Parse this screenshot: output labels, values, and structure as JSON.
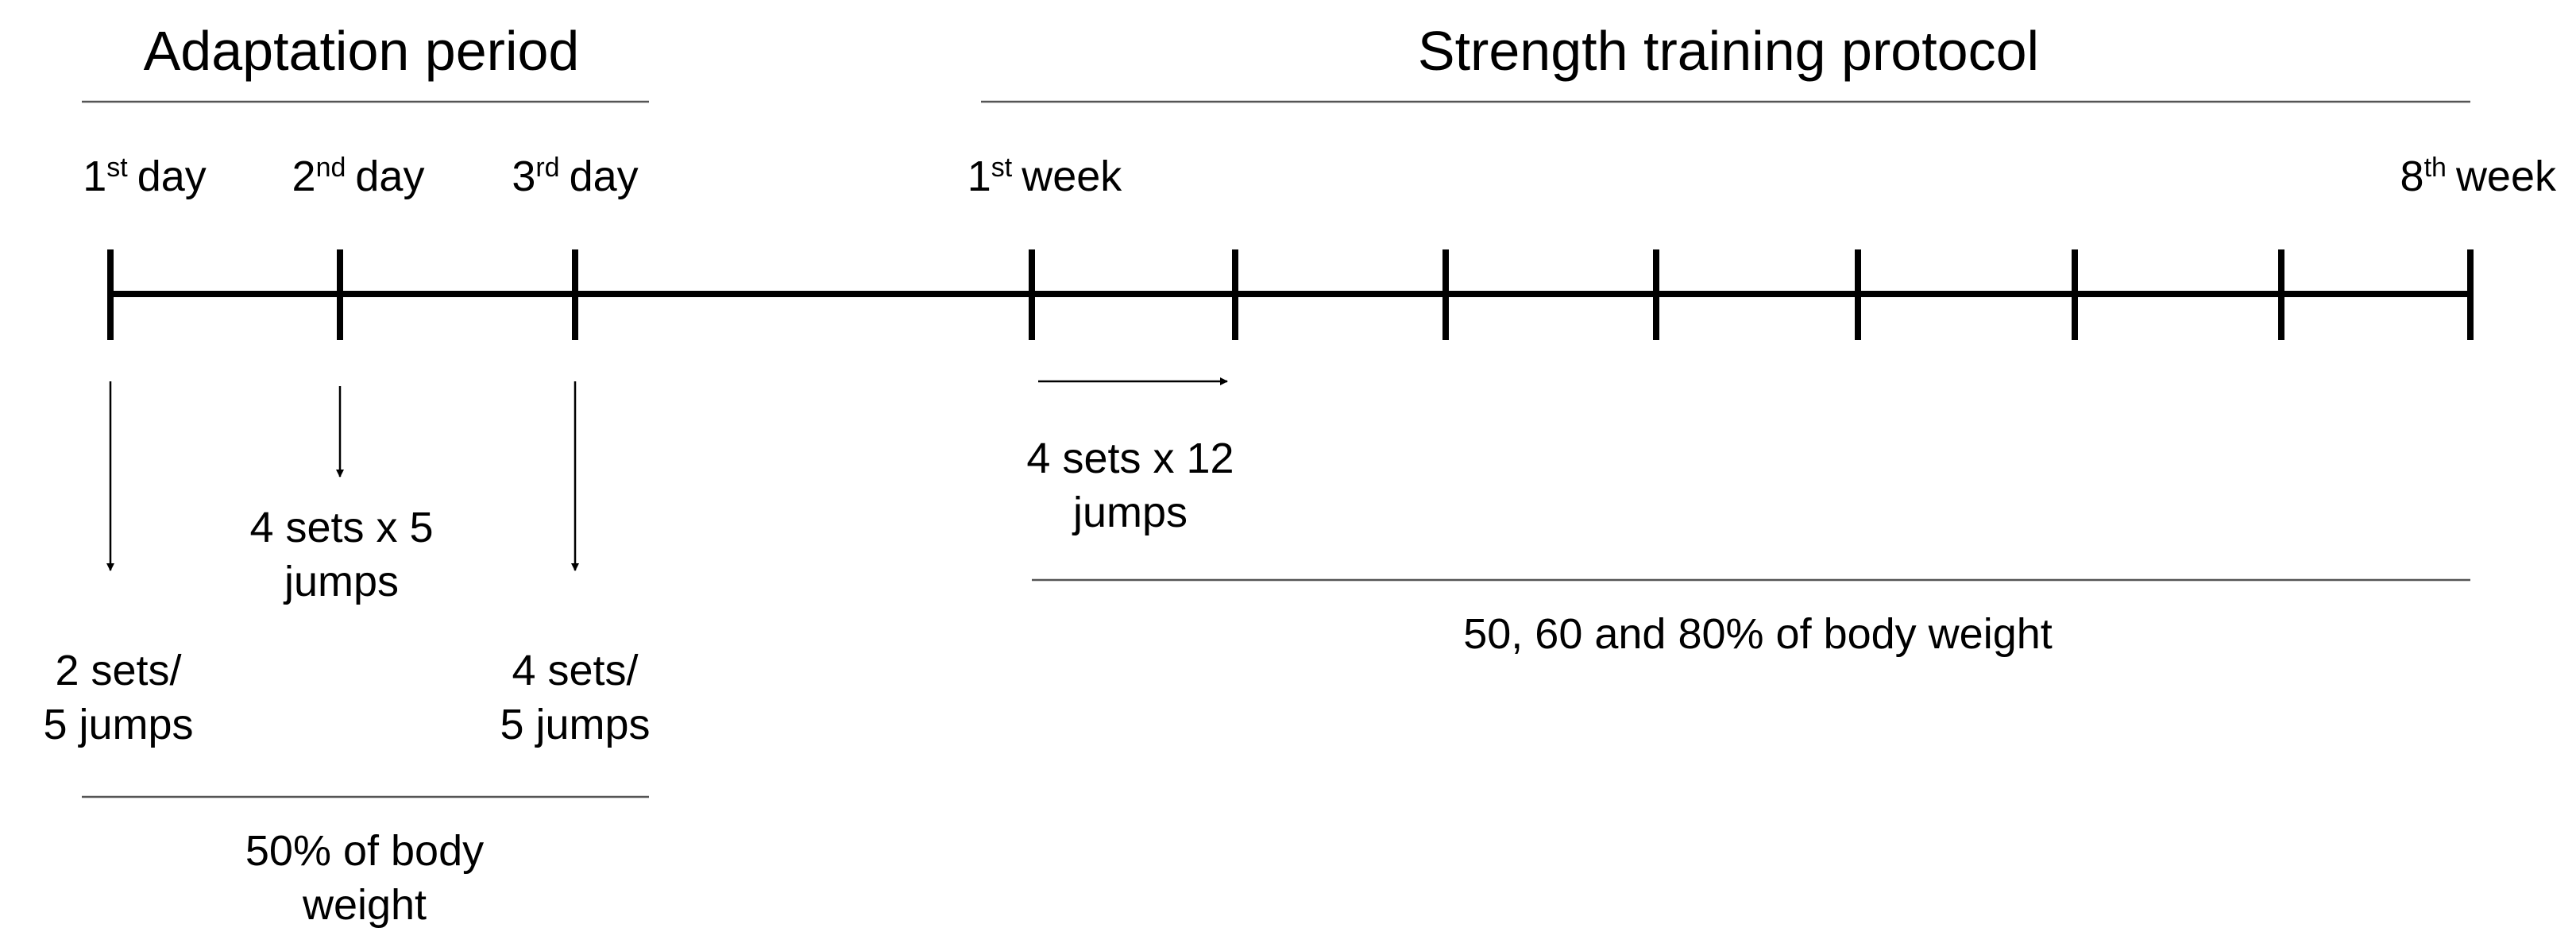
{
  "headers": {
    "adaptation": "Adaptation period",
    "strength": "Strength training protocol"
  },
  "timeline_labels": [
    {
      "number": "1",
      "sup": "st",
      "unit": "day"
    },
    {
      "number": "2",
      "sup": "nd",
      "unit": "day"
    },
    {
      "number": "3",
      "sup": "rd",
      "unit": "day"
    },
    {
      "number": "1",
      "sup": "st",
      "unit": "week"
    },
    {
      "number": "8",
      "sup": "th",
      "unit": "week"
    }
  ],
  "annotations": {
    "day1": [
      "2 sets/",
      "5 jumps"
    ],
    "day2": [
      "4 sets x 5",
      "jumps"
    ],
    "day3": [
      "4 sets/",
      "5 jumps"
    ],
    "week": [
      "4 sets x 12",
      "jumps"
    ],
    "adaptation_load": [
      "50% of body",
      "weight"
    ],
    "strength_load": [
      "50, 60 and 80% of body weight"
    ]
  }
}
